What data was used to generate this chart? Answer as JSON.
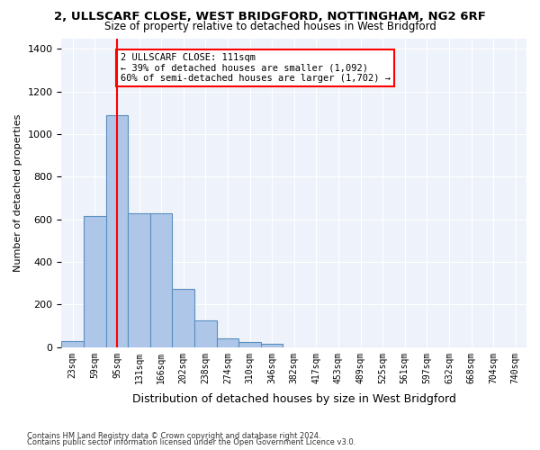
{
  "title_line1": "2, ULLSCARF CLOSE, WEST BRIDGFORD, NOTTINGHAM, NG2 6RF",
  "title_line2": "Size of property relative to detached houses in West Bridgford",
  "xlabel": "Distribution of detached houses by size in West Bridgford",
  "ylabel": "Number of detached properties",
  "bar_values": [
    30,
    615,
    1090,
    630,
    630,
    275,
    125,
    40,
    25,
    15,
    0,
    0,
    0,
    0,
    0,
    0,
    0,
    0,
    0,
    0,
    0
  ],
  "categories": [
    "23sqm",
    "59sqm",
    "95sqm",
    "131sqm",
    "166sqm",
    "202sqm",
    "238sqm",
    "274sqm",
    "310sqm",
    "346sqm",
    "382sqm",
    "417sqm",
    "453sqm",
    "489sqm",
    "525sqm",
    "561sqm",
    "597sqm",
    "632sqm",
    "668sqm",
    "704sqm",
    "740sqm"
  ],
  "bar_color": "#aec6e8",
  "bar_edgecolor": "#5a8fc0",
  "bg_color": "#eef2fa",
  "grid_color": "#ffffff",
  "vline_x": 2,
  "vline_color": "red",
  "annotation_text": "2 ULLSCARF CLOSE: 111sqm\n← 39% of detached houses are smaller (1,092)\n60% of semi-detached houses are larger (1,702) →",
  "annotation_box_color": "white",
  "annotation_box_edgecolor": "red",
  "ylim": [
    0,
    1450
  ],
  "yticks": [
    0,
    200,
    400,
    600,
    800,
    1000,
    1200,
    1400
  ],
  "footer_line1": "Contains HM Land Registry data © Crown copyright and database right 2024.",
  "footer_line2": "Contains public sector information licensed under the Open Government Licence v3.0."
}
